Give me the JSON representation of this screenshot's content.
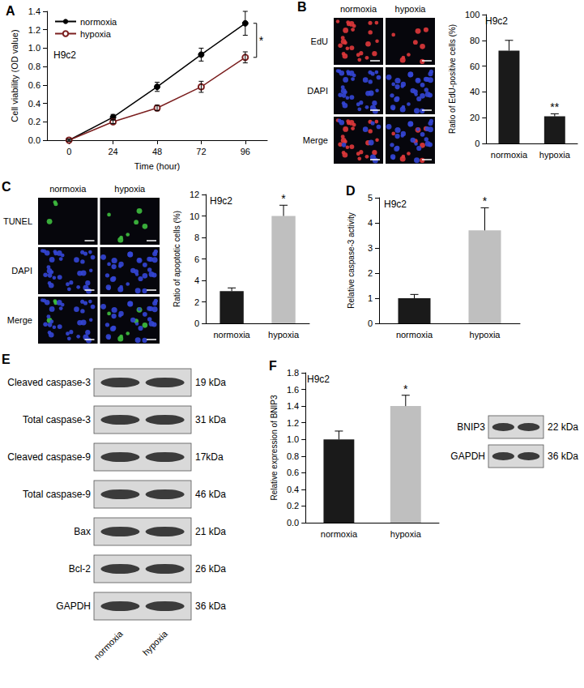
{
  "chart_data": [
    {
      "type": "line",
      "title": "A",
      "annotations": [
        "H9c2"
      ],
      "significance": "*",
      "x_label": "Time (hour)",
      "y_label": "Cell viability (OD value)",
      "categories": [
        "0",
        "24",
        "48",
        "72",
        "96"
      ],
      "series": [
        {
          "name": "normoxia",
          "color": "#000000",
          "marker": "filled circle",
          "values": [
            0,
            0.25,
            0.58,
            0.93,
            1.27
          ],
          "error": [
            0.01,
            0.03,
            0.05,
            0.07,
            0.13
          ]
        },
        {
          "name": "hypoxia",
          "color": "#7b1f1f",
          "marker": "open circle",
          "values": [
            0,
            0.2,
            0.35,
            0.58,
            0.9
          ],
          "error": [
            0.01,
            0.02,
            0.03,
            0.06,
            0.06
          ]
        }
      ],
      "ylim": [
        0,
        1.4
      ],
      "yticks": [
        {
          "value": 0,
          "label": "0.0"
        },
        0.2,
        0.4,
        0.6,
        0.8,
        {
          "value": 1,
          "label": "1.0"
        },
        1.2,
        1.4
      ],
      "legend": "upper left"
    },
    {
      "type": "bar",
      "annotations": [
        "H9c2"
      ],
      "y_label": "Ratio of EdU-positive cells (%)",
      "categories": [
        "normoxia",
        "hypoxia"
      ],
      "values": [
        72,
        21
      ],
      "error": [
        8,
        2
      ],
      "significance": [
        null,
        "**"
      ],
      "colors": [
        "#1a1a1a",
        "#1a1a1a"
      ],
      "ylim": [
        0,
        100
      ],
      "yticks": [
        0,
        20,
        40,
        60,
        80,
        100
      ]
    },
    {
      "type": "bar",
      "annotations": [
        "H9c2"
      ],
      "y_label": "Ratio of apoptotic cells (%)",
      "categories": [
        "normoxia",
        "hypoxia"
      ],
      "values": [
        3,
        10
      ],
      "error": [
        0.3,
        1
      ],
      "significance": [
        null,
        "*"
      ],
      "colors": [
        "#1a1a1a",
        "#bfbfbf"
      ],
      "ylim": [
        0,
        12
      ],
      "yticks": [
        0,
        2,
        4,
        6,
        8,
        10,
        12
      ]
    },
    {
      "type": "bar",
      "title": "D",
      "annotations": [
        "H9c2"
      ],
      "y_label": "Relative caspase-3 activity",
      "categories": [
        "normoxia",
        "hypoxia"
      ],
      "values": [
        1,
        3.7
      ],
      "error": [
        0.15,
        0.9
      ],
      "significance": [
        null,
        "*"
      ],
      "colors": [
        "#1a1a1a",
        "#bfbfbf"
      ],
      "ylim": [
        0,
        5
      ],
      "yticks": [
        0,
        1,
        2,
        3,
        4,
        5
      ]
    },
    {
      "type": "bar",
      "title": "F",
      "annotations": [
        "H9c2"
      ],
      "y_label": "Relative expression of BNIP3",
      "categories": [
        "normoxia",
        "hypoxia"
      ],
      "values": [
        1,
        1.4
      ],
      "error": [
        0.1,
        0.13
      ],
      "significance": [
        null,
        "*"
      ],
      "colors": [
        "#1a1a1a",
        "#bfbfbf"
      ],
      "ylim": [
        0,
        1.8
      ],
      "yticks": [
        {
          "value": 0,
          "label": "0.0"
        },
        0.2,
        0.4,
        0.6,
        0.8,
        {
          "value": 1,
          "label": "1.0"
        },
        1.2,
        1.4,
        1.6,
        1.8
      ]
    }
  ],
  "images": [
    {
      "panel": "B",
      "columns": [
        "normoxia",
        "hypoxia"
      ],
      "rows": [
        "EdU",
        "DAPI",
        "Merge"
      ]
    },
    {
      "panel": "C",
      "columns": [
        "normoxia",
        "hypoxia"
      ],
      "rows": [
        "TUNEL",
        "DAPI",
        "Merge"
      ]
    }
  ],
  "blots": [
    {
      "panel": "E",
      "columns": [
        "normoxia",
        "hypoxia"
      ],
      "rows": [
        {
          "label": "Cleaved caspase-3",
          "size": "19 kDa"
        },
        {
          "label": "Total caspase-3",
          "size": "31 kDa"
        },
        {
          "label": "Cleaved caspase-9",
          "size": "17kDa"
        },
        {
          "label": "Total caspase-9",
          "size": "46 kDa"
        },
        {
          "label": "Bax",
          "size": "21 kDa"
        },
        {
          "label": "Bcl-2",
          "size": "26 kDa"
        },
        {
          "label": "GAPDH",
          "size": "36 kDa"
        }
      ]
    },
    {
      "rows": [
        {
          "label": "BNIP3",
          "size": "22 kDa"
        },
        {
          "label": "GAPDH",
          "size": "36 kDa"
        }
      ]
    }
  ]
}
